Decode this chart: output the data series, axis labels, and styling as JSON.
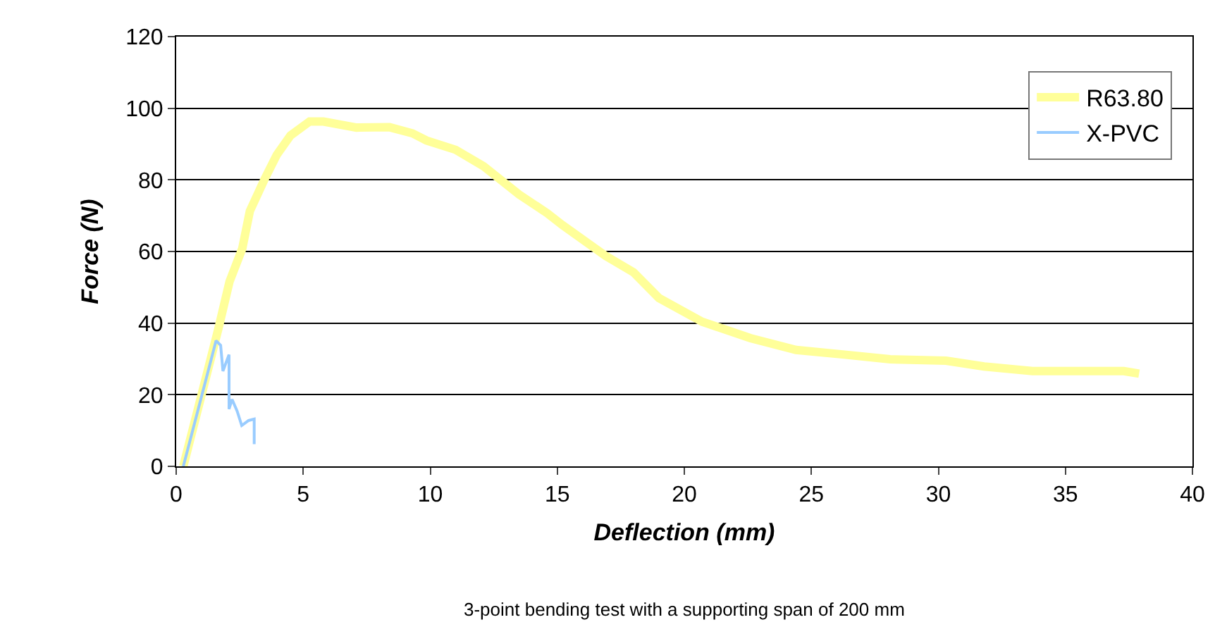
{
  "chart_data": {
    "type": "line",
    "xlabel": "Deflection (mm)",
    "ylabel": "Force (N)",
    "annotations": [
      "3-point bending test with a supporting span of 200 mm"
    ],
    "xlim": [
      0,
      40
    ],
    "xticks": [
      0,
      5,
      10,
      15,
      20,
      25,
      30,
      35,
      40
    ],
    "ylim": [
      0,
      120
    ],
    "yticks": [
      0,
      20,
      40,
      60,
      80,
      100,
      120
    ],
    "grid": "y",
    "legend": "top right",
    "marker": "none",
    "line_style": "solid",
    "series": [
      {
        "name": "R63.80",
        "color": "#ffff99",
        "x": [
          0.28,
          1.0,
          1.66,
          2.1,
          2.6,
          2.9,
          3.5,
          3.96,
          4.5,
          5.25,
          5.8,
          7.1,
          8.4,
          9.3,
          9.85,
          11,
          12.1,
          13.5,
          14.6,
          15.2,
          16.9,
          18,
          19,
          20.7,
          22.6,
          24.4,
          26.3,
          28.1,
          30.3,
          31.8,
          33.7,
          35.5,
          37.3,
          37.9
        ],
        "values": [
          0,
          20,
          38.4,
          51.6,
          60.8,
          71.3,
          80.5,
          87,
          92.4,
          96.3,
          96.3,
          94.6,
          94.7,
          93,
          91,
          88.4,
          83.8,
          75.9,
          70.7,
          67.4,
          58.8,
          54.2,
          47,
          40.4,
          35.8,
          32.5,
          31.2,
          29.9,
          29.5,
          27.9,
          26.6,
          26.6,
          26.6,
          25.9
        ]
      },
      {
        "name": "X-PVC",
        "color": "#99ccff",
        "x": [
          0.28,
          1.57,
          1.75,
          1.84,
          2.08,
          2.08,
          2.2,
          2.4,
          2.58,
          2.85,
          3.07,
          3.07
        ],
        "values": [
          0,
          35.1,
          33.8,
          26.6,
          31.2,
          16,
          18.7,
          15.4,
          11.4,
          12.8,
          13.2,
          6.2
        ]
      }
    ]
  }
}
